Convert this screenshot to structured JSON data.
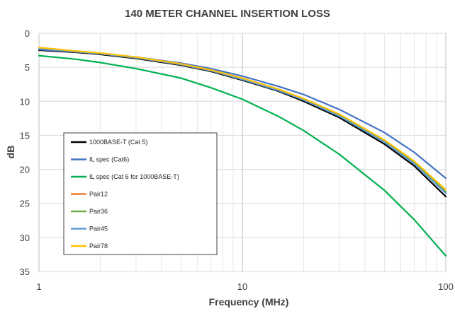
{
  "chart_data": {
    "type": "line",
    "title": "140 METER CHANNEL INSERTION LOSS",
    "xlabel": "Frequency (MHz)",
    "ylabel": "dB",
    "x_scale": "log",
    "xlim": [
      1,
      100
    ],
    "ylim": [
      0,
      35
    ],
    "y_reversed": true,
    "grid": true,
    "legend_position": "inside-left",
    "x_ticks": [
      {
        "value": 1,
        "label": "1"
      },
      {
        "value": 10,
        "label": "10"
      },
      {
        "value": 100,
        "label": "100"
      }
    ],
    "y_ticks": [
      {
        "value": 0,
        "label": "0"
      },
      {
        "value": 5,
        "label": "5"
      },
      {
        "value": 10,
        "label": "10"
      },
      {
        "value": 15,
        "label": "15"
      },
      {
        "value": 20,
        "label": "20"
      },
      {
        "value": 25,
        "label": "25"
      },
      {
        "value": 30,
        "label": "30"
      },
      {
        "value": 35,
        "label": "35"
      }
    ],
    "x": [
      1,
      1.5,
      2,
      3,
      5,
      7,
      10,
      15,
      20,
      30,
      50,
      70,
      100
    ],
    "series": [
      {
        "name": "1000BASE-T (Cat 5)",
        "color": "#000000",
        "values": [
          2.5,
          2.8,
          3.1,
          3.7,
          4.7,
          5.6,
          6.9,
          8.5,
          10.0,
          12.4,
          16.3,
          19.5,
          24.0
        ]
      },
      {
        "name": "IL spec (Cat6)",
        "color": "#4472c4",
        "values": [
          2.4,
          2.7,
          3.0,
          3.5,
          4.4,
          5.2,
          6.3,
          7.8,
          9.0,
          11.2,
          14.6,
          17.5,
          21.3
        ]
      },
      {
        "name": "IL spec (Cat 6 for 1000BASE-T)",
        "color": "#00b050",
        "values": [
          3.3,
          3.8,
          4.3,
          5.2,
          6.6,
          8.0,
          9.7,
          12.2,
          14.3,
          17.8,
          23.1,
          27.4,
          32.7
        ]
      },
      {
        "name": "Pair12",
        "color": "#ed7d31",
        "values": [
          2.2,
          2.7,
          3.0,
          3.6,
          4.6,
          5.5,
          6.7,
          8.3,
          9.7,
          12.1,
          15.9,
          19.0,
          23.3
        ]
      },
      {
        "name": "Pair36",
        "color": "#70ad47",
        "values": [
          2.2,
          2.7,
          3.0,
          3.6,
          4.6,
          5.5,
          6.7,
          8.3,
          9.7,
          12.1,
          15.9,
          19.0,
          23.3
        ]
      },
      {
        "name": "Pair45",
        "color": "#5b9bd5",
        "values": [
          2.2,
          2.7,
          3.0,
          3.6,
          4.6,
          5.5,
          6.8,
          8.4,
          9.8,
          12.2,
          16.0,
          19.2,
          23.5
        ]
      },
      {
        "name": "Pair78",
        "color": "#ffc000",
        "values": [
          2.1,
          2.6,
          2.9,
          3.5,
          4.5,
          5.4,
          6.6,
          8.2,
          9.6,
          11.9,
          15.7,
          18.8,
          23.0
        ]
      }
    ]
  }
}
